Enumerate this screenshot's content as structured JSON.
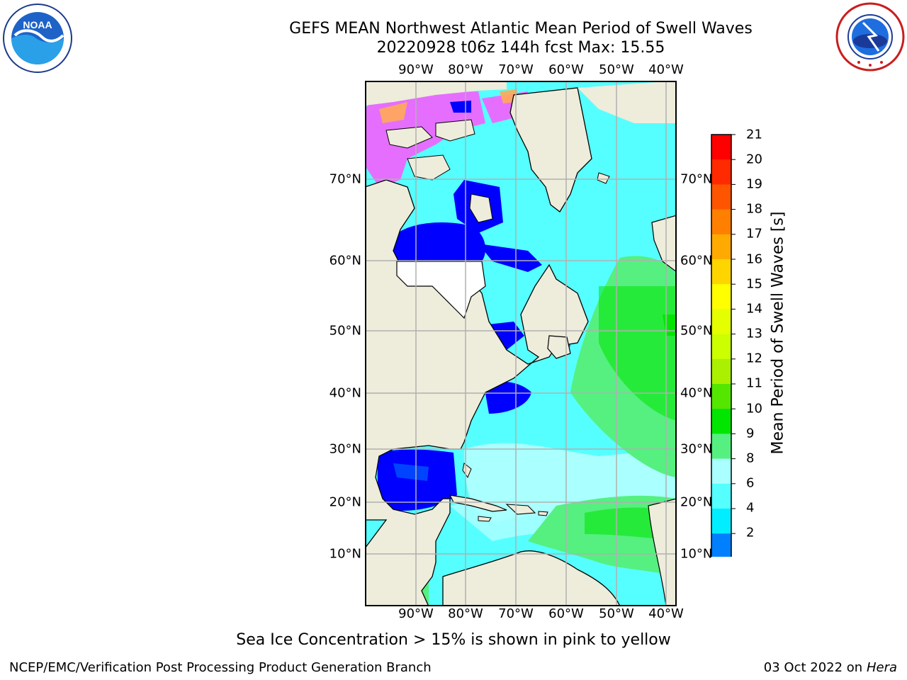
{
  "header": {
    "title_line1": "GEFS MEAN Northwest Atlantic Mean Period of Swell Waves",
    "title_line2": "20220928 t06z 144h fcst   Max: 15.55"
  },
  "map": {
    "lon_labels": [
      "90°W",
      "80°W",
      "70°W",
      "60°W",
      "50°W",
      "40°W"
    ],
    "lat_labels": [
      "70°N",
      "60°N",
      "50°N",
      "40°N",
      "30°N",
      "20°N",
      "10°N"
    ],
    "land_color": "#eeecdb",
    "grid_color": "#b0b0b0"
  },
  "colorbar": {
    "title": "Mean Period of Swell Waves [s]",
    "ticks": [
      "21",
      "20",
      "19",
      "18",
      "17",
      "16",
      "15",
      "14",
      "13",
      "12",
      "11",
      "10",
      "9",
      "8",
      "6",
      "4",
      "2"
    ],
    "colors": [
      "#ff0000",
      "#ff2a00",
      "#ff5500",
      "#ff8000",
      "#ffaa00",
      "#ffd500",
      "#ffff00",
      "#e6ff00",
      "#ccff00",
      "#aaf000",
      "#55e600",
      "#00e600",
      "#55f080",
      "#aaffff",
      "#55ffff",
      "#00eeff",
      "#0080ff"
    ],
    "extend_color": "#0000ff"
  },
  "notes": {
    "sea_ice": "Sea Ice Concentration > 15% is shown in pink to yellow"
  },
  "footer": {
    "left": "NCEP/EMC/Verification Post Processing Product Generation Branch",
    "right_date": "03 Oct 2022 on",
    "right_host": "Hera"
  },
  "logos": {
    "left": "NOAA",
    "right": "NATIONAL WEATHER SERVICE"
  }
}
